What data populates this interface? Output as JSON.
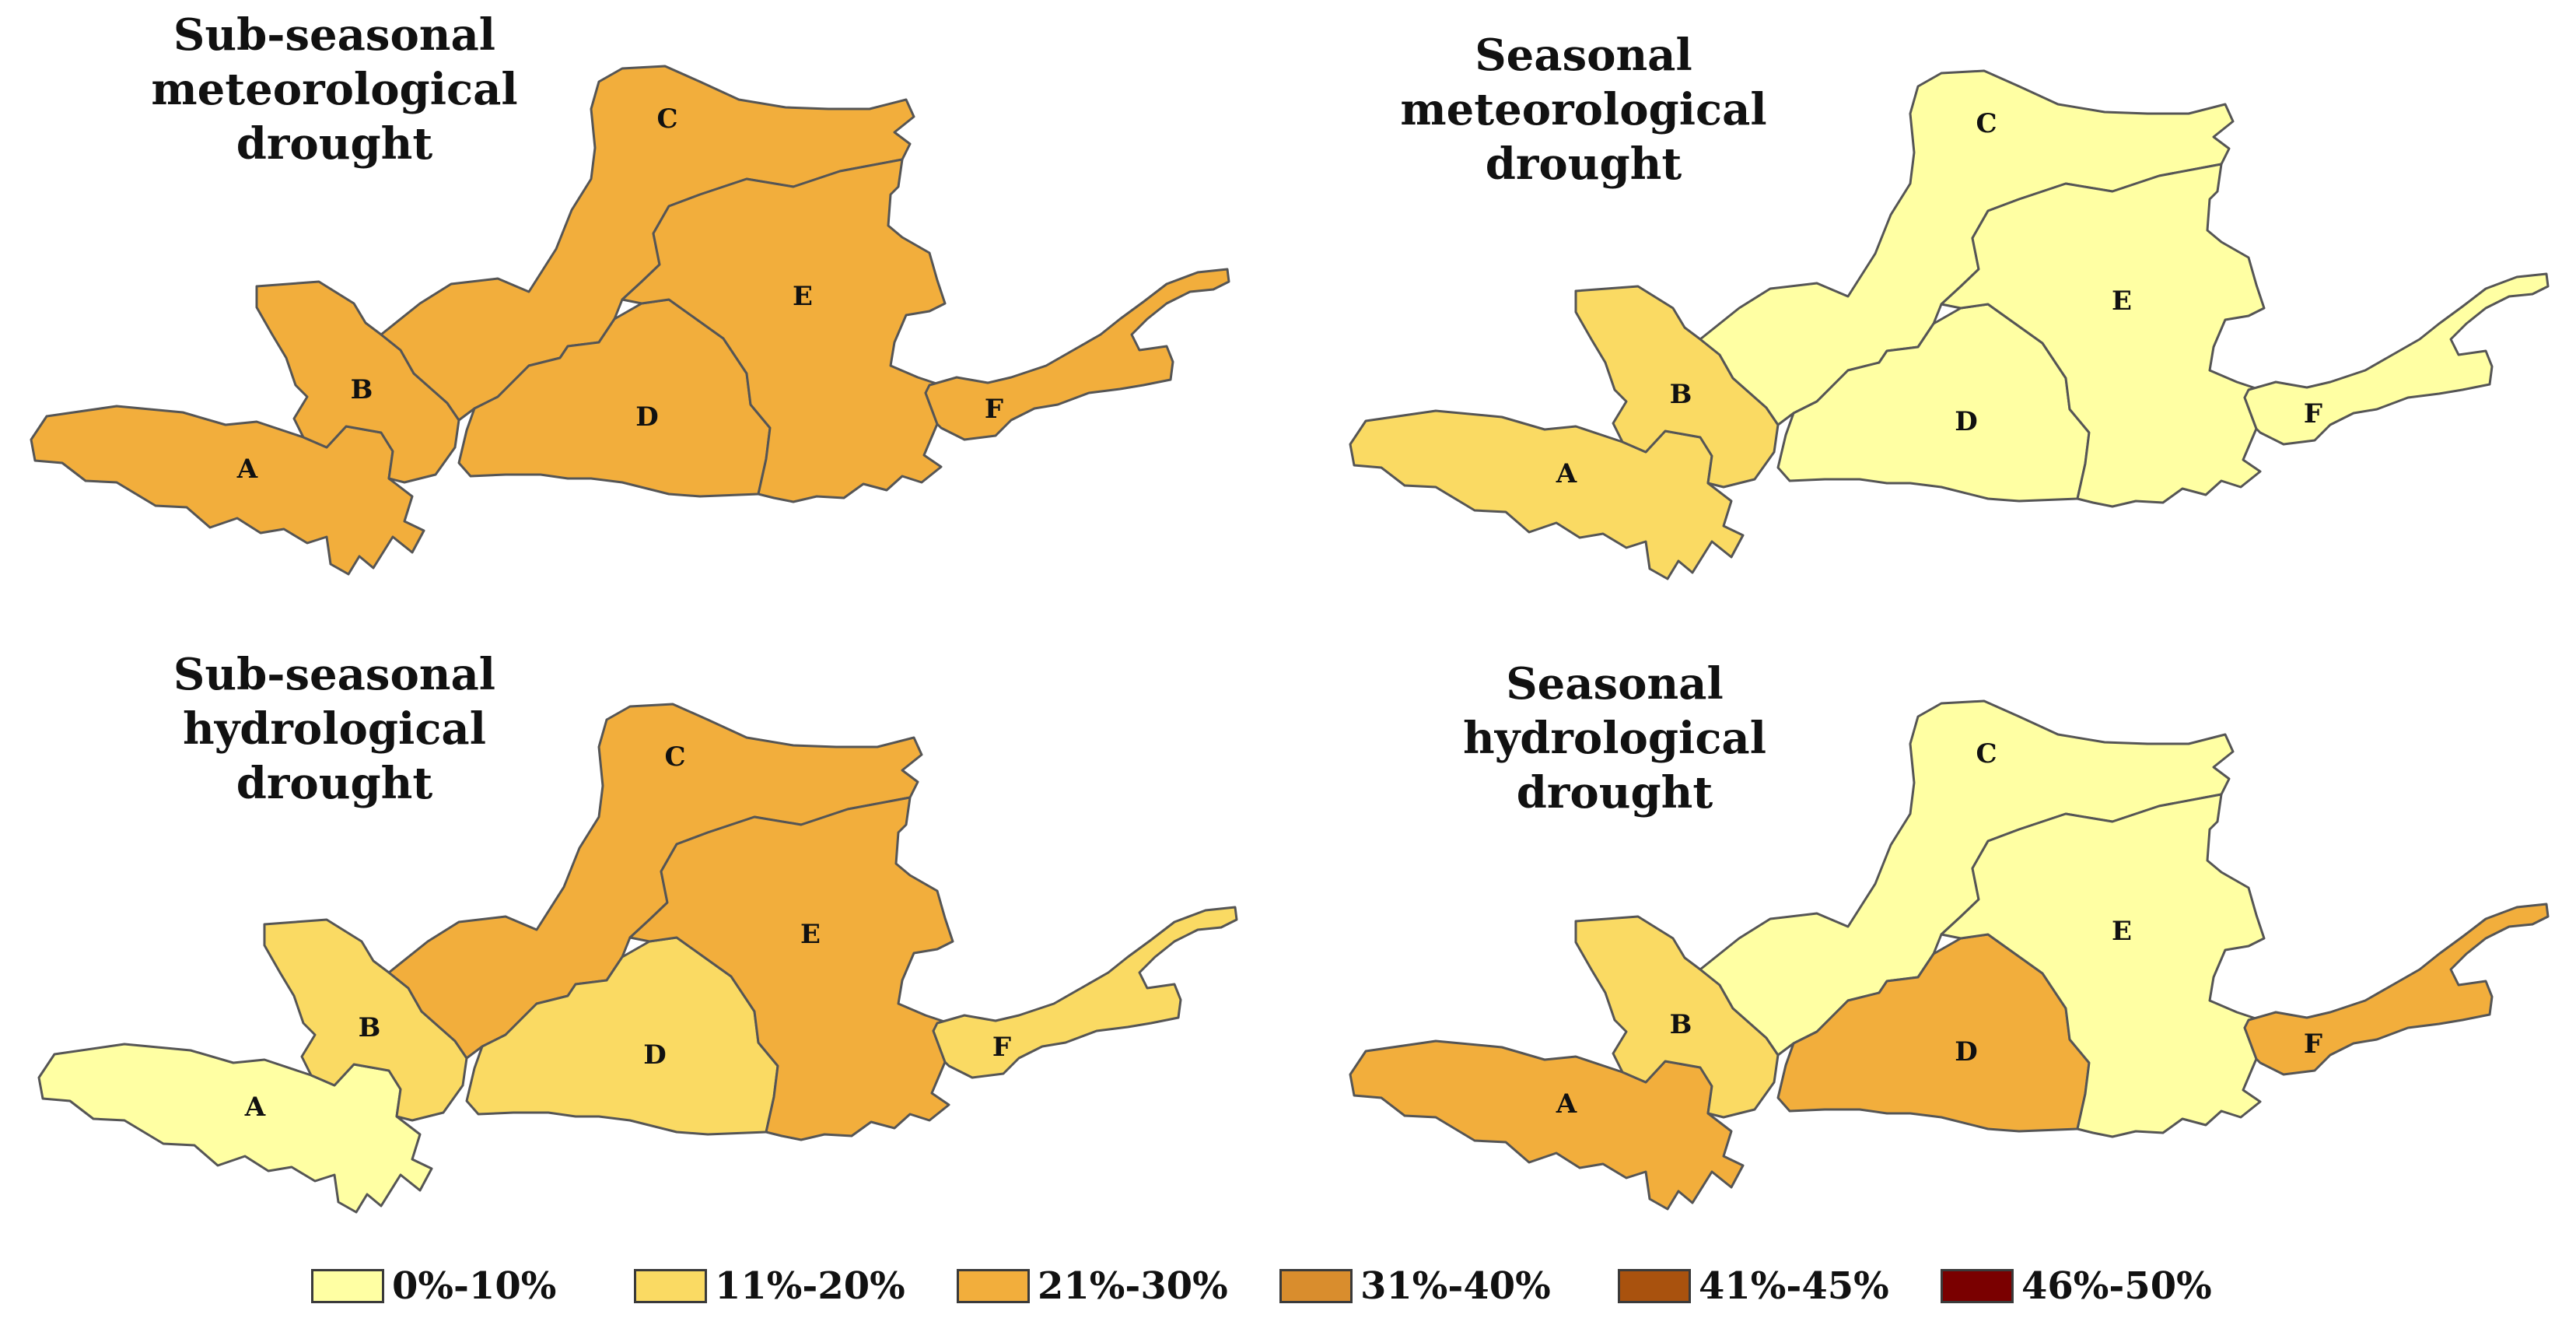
{
  "panels": [
    {
      "title_line1": "Sub-seasonal",
      "title_line2": "meteorological drought",
      "regions": [
        {
          "id": "A",
          "label": "A",
          "class": "21%-30%"
        },
        {
          "id": "B",
          "label": "B",
          "class": "21%-30%"
        },
        {
          "id": "C",
          "label": "C",
          "class": "21%-30%"
        },
        {
          "id": "D",
          "label": "D",
          "class": "21%-30%"
        },
        {
          "id": "E",
          "label": "E",
          "class": "21%-30%"
        },
        {
          "id": "F",
          "label": "F",
          "class": "21%-30%"
        }
      ]
    },
    {
      "title_line1": "Seasonal",
      "title_line2": "meteorological drought",
      "regions": [
        {
          "id": "A",
          "label": "A",
          "class": "11%-20%"
        },
        {
          "id": "B",
          "label": "B",
          "class": "11%-20%"
        },
        {
          "id": "C",
          "label": "C",
          "class": "0%-10%"
        },
        {
          "id": "D",
          "label": "D",
          "class": "0%-10%"
        },
        {
          "id": "E",
          "label": "E",
          "class": "0%-10%"
        },
        {
          "id": "F",
          "label": "F",
          "class": "0%-10%"
        }
      ]
    },
    {
      "title_line1": "Sub-seasonal",
      "title_line2": "hydrological drought",
      "regions": [
        {
          "id": "A",
          "label": "A",
          "class": "0%-10%"
        },
        {
          "id": "B",
          "label": "B",
          "class": "11%-20%"
        },
        {
          "id": "C",
          "label": "C",
          "class": "21%-30%"
        },
        {
          "id": "D",
          "label": "D",
          "class": "11%-20%"
        },
        {
          "id": "E",
          "label": "E",
          "class": "21%-30%"
        },
        {
          "id": "F",
          "label": "F",
          "class": "11%-20%"
        }
      ]
    },
    {
      "title_line1": "Seasonal",
      "title_line2": "hydrological drought",
      "regions": [
        {
          "id": "A",
          "label": "A",
          "class": "21%-30%"
        },
        {
          "id": "B",
          "label": "B",
          "class": "11%-20%"
        },
        {
          "id": "C",
          "label": "C",
          "class": "0%-10%"
        },
        {
          "id": "D",
          "label": "D",
          "class": "21%-30%"
        },
        {
          "id": "E",
          "label": "E",
          "class": "0%-10%"
        },
        {
          "id": "F",
          "label": "F",
          "class": "21%-30%"
        }
      ]
    }
  ],
  "legend": [
    {
      "label": "0%-10%",
      "color": "#FFFFA3"
    },
    {
      "label": "11%-20%",
      "color": "#FADA63"
    },
    {
      "label": "21%-30%",
      "color": "#F2AE3C"
    },
    {
      "label": "31%-40%",
      "color": "#D98D2D"
    },
    {
      "label": "41%-45%",
      "color": "#A9520E"
    },
    {
      "label": "46%-50%",
      "color": "#7A0000"
    }
  ]
}
